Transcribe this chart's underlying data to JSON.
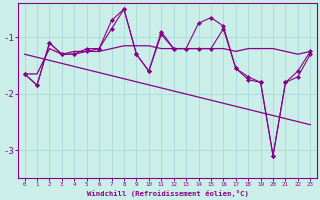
{
  "background_color": "#cceee8",
  "grid_color": "#aadddd",
  "line_color": "#880088",
  "marker_color": "#880088",
  "text_color": "#880088",
  "xlabel": "Windchill (Refroidissement éolien,°C)",
  "xlim": [
    -0.5,
    23.5
  ],
  "ylim": [
    -3.5,
    -0.4
  ],
  "yticks": [
    -3,
    -2,
    -1
  ],
  "xticks": [
    0,
    1,
    2,
    3,
    4,
    5,
    6,
    7,
    8,
    9,
    10,
    11,
    12,
    13,
    14,
    15,
    16,
    17,
    18,
    19,
    20,
    21,
    22,
    23
  ],
  "series_flat_x": [
    0,
    1,
    2,
    3,
    4,
    5,
    6,
    7,
    8,
    9,
    10,
    11,
    12,
    13,
    14,
    15,
    16,
    17,
    18,
    19,
    20,
    21,
    22,
    23
  ],
  "series_flat_y": [
    -1.65,
    -1.65,
    -1.2,
    -1.3,
    -1.25,
    -1.25,
    -1.25,
    -1.2,
    -1.15,
    -1.15,
    -1.15,
    -1.2,
    -1.2,
    -1.2,
    -1.2,
    -1.2,
    -1.2,
    -1.25,
    -1.2,
    -1.2,
    -1.2,
    -1.25,
    -1.3,
    -1.25
  ],
  "series_zigzag_x": [
    0,
    1,
    2,
    3,
    4,
    5,
    6,
    7,
    8,
    9,
    10,
    11,
    12,
    13,
    14,
    15,
    16,
    17,
    18,
    19,
    20,
    21,
    22,
    23
  ],
  "series_zigzag_y": [
    -1.65,
    -1.85,
    -1.1,
    -1.3,
    -1.3,
    -1.25,
    -1.2,
    -0.85,
    -0.5,
    -1.3,
    -1.6,
    -0.95,
    -1.2,
    -1.2,
    -1.2,
    -1.2,
    -0.85,
    -1.55,
    -1.75,
    -1.8,
    -3.1,
    -1.8,
    -1.7,
    -1.3
  ],
  "series_zigzag2_x": [
    0,
    1,
    2,
    3,
    4,
    5,
    6,
    7,
    8,
    9,
    10,
    11,
    12,
    13,
    14,
    15,
    16,
    17,
    18,
    19,
    20,
    21,
    22,
    23
  ],
  "series_zigzag2_y": [
    -1.65,
    -1.85,
    -1.1,
    -1.3,
    -1.3,
    -1.2,
    -1.2,
    -0.7,
    -0.5,
    -1.3,
    -1.6,
    -0.9,
    -1.2,
    -1.2,
    -0.75,
    -0.65,
    -0.8,
    -1.55,
    -1.7,
    -1.8,
    -3.1,
    -1.8,
    -1.6,
    -1.25
  ],
  "trend_x": [
    0,
    23
  ],
  "trend_y": [
    -1.3,
    -2.55
  ]
}
